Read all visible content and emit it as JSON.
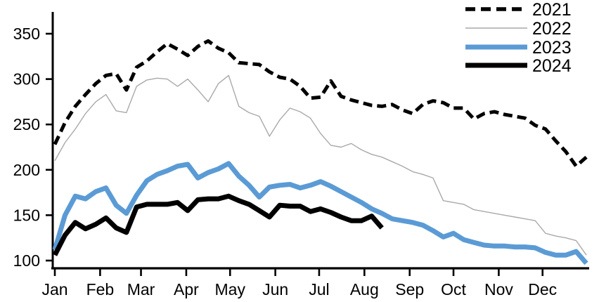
{
  "chart_data": {
    "type": "line",
    "title": "",
    "x_axis": {
      "tick_labels": [
        "Jan",
        "Feb",
        "Mar",
        "Apr",
        "May",
        "Jun",
        "Jul",
        "Aug",
        "Sep",
        "Oct",
        "Nov",
        "Dec"
      ],
      "unit": "weekly data, January through December"
    },
    "y_axis": {
      "tick_labels": [
        "350",
        "300",
        "250",
        "200",
        "150",
        "100"
      ],
      "tick_values": [
        350,
        300,
        250,
        200,
        150,
        100
      ],
      "range": [
        95,
        375
      ],
      "grid": false
    },
    "legend": {
      "position": "top-right",
      "entries": [
        "2021",
        "2022",
        "2023",
        "2024"
      ]
    },
    "series": [
      {
        "name": "2022",
        "style": "solid",
        "color": "#a9a9a9",
        "width": 1.4,
        "values": [
          210,
          230,
          245,
          262,
          275,
          283,
          265,
          263,
          292,
          299,
          301,
          300,
          292,
          300,
          288,
          275,
          295,
          304,
          270,
          263,
          259,
          237,
          255,
          268,
          264,
          257,
          240,
          227,
          225,
          229,
          222,
          217,
          214,
          209,
          204,
          198,
          195,
          191,
          166,
          164,
          162,
          156,
          154,
          152,
          150,
          148,
          146,
          144,
          130,
          127,
          125,
          122,
          106
        ]
      },
      {
        "name": "2021",
        "style": "dashed",
        "color": "#000000",
        "width": 5,
        "values": [
          228,
          252,
          270,
          283,
          295,
          304,
          306,
          288,
          313,
          320,
          330,
          339,
          333,
          326,
          336,
          342,
          334,
          329,
          318,
          317,
          316,
          308,
          302,
          300,
          292,
          279,
          280,
          298,
          281,
          277,
          274,
          271,
          270,
          272,
          266,
          262,
          272,
          276,
          274,
          268,
          268,
          256,
          262,
          264,
          261,
          259,
          257,
          249,
          245,
          232,
          220,
          204,
          214
        ]
      },
      {
        "name": "2023",
        "style": "solid",
        "color": "#5b9bd5",
        "width": 7,
        "values": [
          112,
          150,
          171,
          168,
          176,
          180,
          161,
          152,
          172,
          188,
          195,
          199,
          204,
          206,
          191,
          197,
          201,
          207,
          193,
          183,
          170,
          181,
          183,
          184,
          180,
          183,
          187,
          182,
          176,
          170,
          164,
          157,
          152,
          146,
          144,
          142,
          139,
          133,
          126,
          130,
          123,
          120,
          117,
          116,
          116,
          115,
          115,
          114,
          109,
          106,
          106,
          110,
          97
        ]
      },
      {
        "name": "2024",
        "style": "solid",
        "color": "#000000",
        "width": 7,
        "values": [
          106,
          128,
          142,
          135,
          140,
          147,
          136,
          131,
          159,
          162,
          162,
          162,
          164,
          155,
          167,
          168,
          168,
          171,
          166,
          162,
          155,
          148,
          161,
          160,
          160,
          154,
          157,
          153,
          148,
          144,
          144,
          149,
          136
        ]
      }
    ],
    "layout": {
      "axis_color": "#000000",
      "background": "#ffffff"
    }
  }
}
